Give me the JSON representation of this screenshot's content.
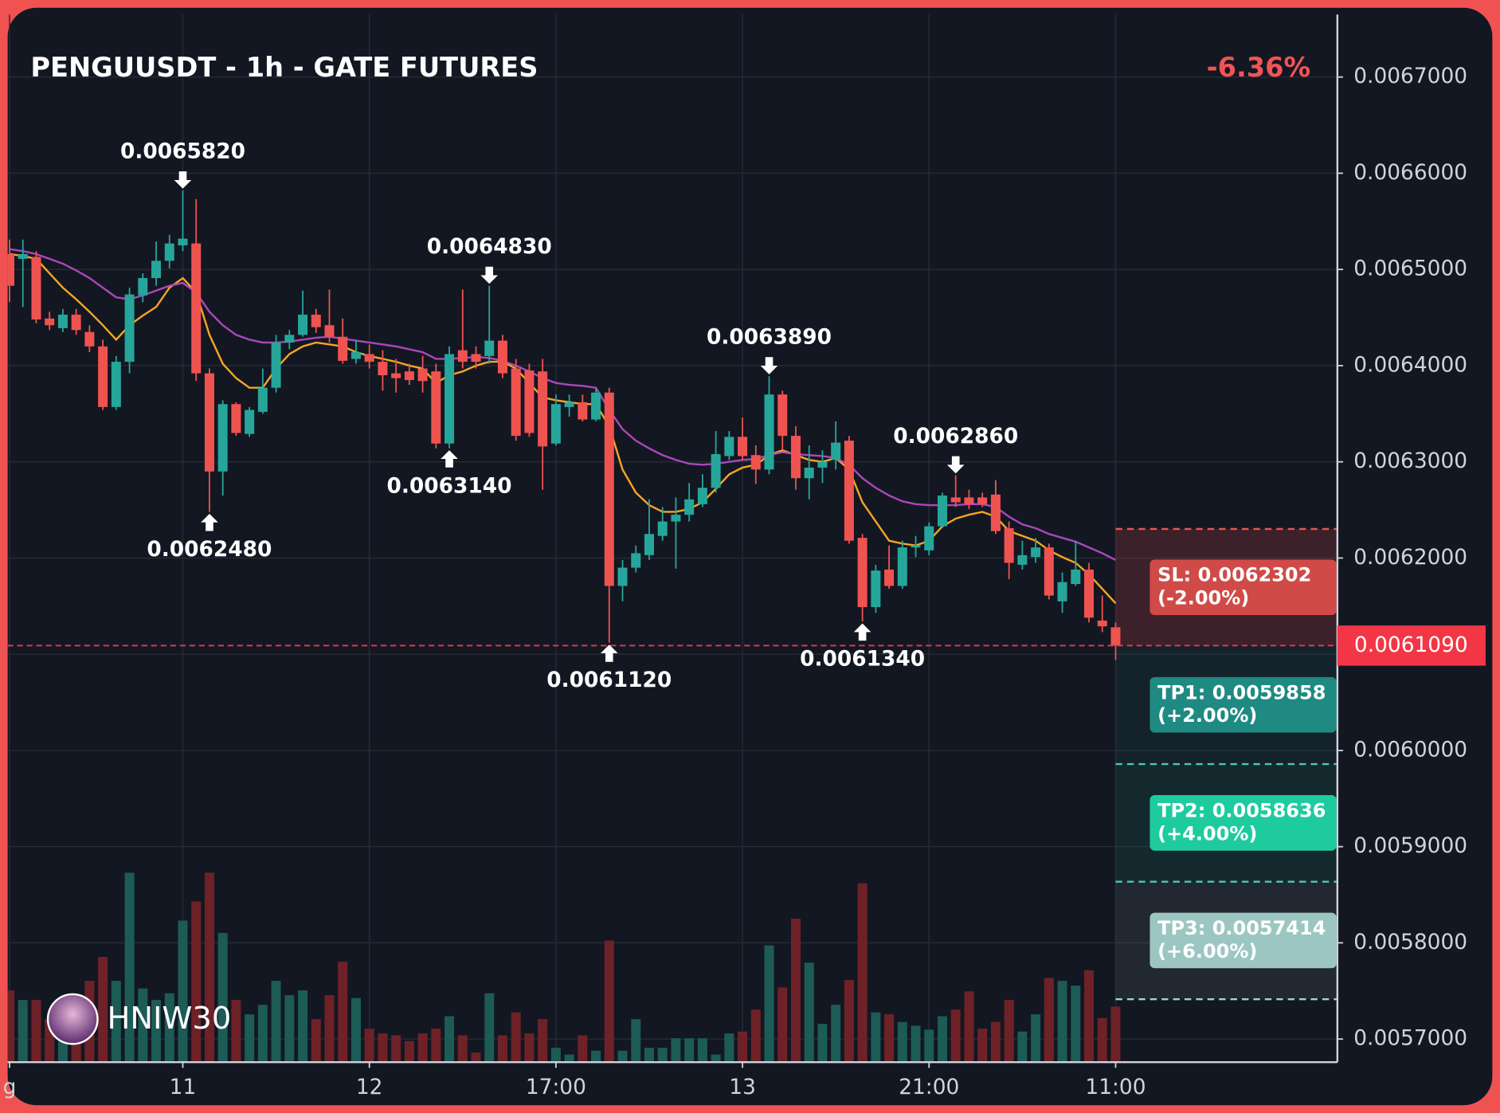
{
  "chart_data": {
    "type": "candlestick",
    "title": "PENGUUSDT - 1h - GATE FUTURES",
    "change": "-6.36%",
    "watermark": "HNIW30",
    "up_color": "#26a69a",
    "down_color": "#ef5350",
    "categories": [
      "g",
      null,
      null,
      null,
      null,
      null,
      null,
      null,
      null,
      null,
      null,
      null,
      null,
      "11",
      null,
      null,
      null,
      null,
      null,
      null,
      null,
      null,
      null,
      null,
      null,
      null,
      null,
      "12",
      null,
      null,
      null,
      null,
      null,
      null,
      null,
      null,
      null,
      null,
      null,
      null,
      null,
      "17:00",
      null,
      null,
      null,
      null,
      null,
      null,
      null,
      null,
      null,
      null,
      null,
      null,
      null,
      "13",
      null,
      null,
      null,
      null,
      null,
      null,
      null,
      null,
      null,
      null,
      null,
      null,
      null,
      "21:00",
      null,
      null,
      null,
      null,
      null,
      null,
      null,
      null,
      null,
      null,
      null,
      null,
      null,
      "11:00"
    ],
    "open": [
      0.006516,
      0.006511,
      0.006513,
      0.006449,
      0.006439,
      0.006453,
      0.006435,
      0.00642,
      0.006357,
      0.006404,
      0.006473,
      0.006491,
      0.006509,
      0.006525,
      0.006527,
      0.006392,
      0.00629,
      0.00636,
      0.006329,
      0.006352,
      0.006377,
      0.006424,
      0.006432,
      0.006453,
      0.006442,
      0.00643,
      0.006407,
      0.006412,
      0.006404,
      0.006392,
      0.006394,
      0.006397,
      0.006394,
      0.006319,
      0.006416,
      0.006412,
      0.00641,
      0.006426,
      0.006397,
      0.006395,
      0.006394,
      0.006319,
      0.006357,
      0.006362,
      0.006344,
      0.006372,
      0.006171,
      0.00619,
      0.006203,
      0.006223,
      0.006238,
      0.006245,
      0.006256,
      0.006273,
      0.006306,
      0.006326,
      0.006307,
      0.006292,
      0.00637,
      0.006327,
      0.006283,
      0.006294,
      0.006302,
      0.006322,
      0.006221,
      0.006149,
      0.006188,
      0.006171,
      0.006211,
      0.006208,
      0.006233,
      0.006263,
      0.006263,
      0.006263,
      0.006266,
      0.006231,
      0.006193,
      0.006201,
      0.006211,
      0.006155,
      0.006173,
      0.006188,
      0.006135,
      0.006128
    ],
    "close": [
      0.006483,
      0.006516,
      0.006448,
      0.006442,
      0.006453,
      0.006437,
      0.00642,
      0.006357,
      0.006404,
      0.006474,
      0.006491,
      0.006509,
      0.006527,
      0.006532,
      0.006392,
      0.00629,
      0.00636,
      0.00633,
      0.006354,
      0.006377,
      0.006424,
      0.006432,
      0.006453,
      0.00644,
      0.00643,
      0.006405,
      0.006414,
      0.006404,
      0.00639,
      0.006387,
      0.006385,
      0.006384,
      0.006319,
      0.006412,
      0.006404,
      0.006404,
      0.006426,
      0.006392,
      0.006327,
      0.00633,
      0.006316,
      0.00636,
      0.006362,
      0.006344,
      0.006372,
      0.006171,
      0.00619,
      0.006205,
      0.006225,
      0.006238,
      0.006245,
      0.006261,
      0.006273,
      0.006308,
      0.006326,
      0.006306,
      0.006292,
      0.00637,
      0.006327,
      0.006283,
      0.006294,
      0.0063,
      0.00632,
      0.006218,
      0.006149,
      0.006187,
      0.006171,
      0.006211,
      0.006213,
      0.006233,
      0.006265,
      0.006258,
      0.006256,
      0.006256,
      0.006228,
      0.006195,
      0.006203,
      0.006211,
      0.006161,
      0.006175,
      0.006188,
      0.006138,
      0.006129,
      0.006109
    ],
    "high": [
      0.006531,
      0.006531,
      0.006519,
      0.006456,
      0.006459,
      0.006459,
      0.006442,
      0.006427,
      0.00641,
      0.006481,
      0.006496,
      0.006529,
      0.006536,
      0.006582,
      0.006573,
      0.006397,
      0.006364,
      0.006362,
      0.006357,
      0.006397,
      0.006432,
      0.006437,
      0.006478,
      0.006459,
      0.006479,
      0.006449,
      0.006427,
      0.006422,
      0.006416,
      0.006407,
      0.006402,
      0.00641,
      0.006402,
      0.00642,
      0.006479,
      0.00642,
      0.006483,
      0.006432,
      0.006407,
      0.006402,
      0.006407,
      0.00637,
      0.00637,
      0.00637,
      0.006377,
      0.006377,
      0.006198,
      0.006213,
      0.006261,
      0.006253,
      0.006263,
      0.006278,
      0.006287,
      0.006332,
      0.006332,
      0.006346,
      0.006317,
      0.006389,
      0.006374,
      0.006337,
      0.006317,
      0.006312,
      0.006342,
      0.006327,
      0.006225,
      0.006193,
      0.006213,
      0.006218,
      0.006223,
      0.006237,
      0.006268,
      0.006286,
      0.006271,
      0.006268,
      0.006281,
      0.006238,
      0.006218,
      0.006221,
      0.006215,
      0.006185,
      0.006218,
      0.006195,
      0.006161,
      0.006133
    ],
    "low": [
      0.006466,
      0.006461,
      0.006444,
      0.006437,
      0.006435,
      0.006432,
      0.006414,
      0.006354,
      0.006354,
      0.006392,
      0.006466,
      0.006483,
      0.006501,
      0.006519,
      0.006384,
      0.006248,
      0.006265,
      0.006327,
      0.006326,
      0.00635,
      0.006372,
      0.006417,
      0.00643,
      0.006434,
      0.006424,
      0.006402,
      0.006402,
      0.006397,
      0.006374,
      0.006372,
      0.00638,
      0.006372,
      0.006314,
      0.006314,
      0.006397,
      0.006397,
      0.006402,
      0.006387,
      0.006322,
      0.006326,
      0.006271,
      0.006317,
      0.006347,
      0.006342,
      0.006342,
      0.006112,
      0.006155,
      0.006185,
      0.006198,
      0.006218,
      0.006189,
      0.006238,
      0.006253,
      0.006268,
      0.006302,
      0.006302,
      0.006277,
      0.006287,
      0.006312,
      0.006271,
      0.006261,
      0.006278,
      0.006292,
      0.006215,
      0.006134,
      0.006143,
      0.006168,
      0.006168,
      0.006201,
      0.006203,
      0.006231,
      0.006253,
      0.006251,
      0.006253,
      0.006225,
      0.006178,
      0.006188,
      0.006195,
      0.006157,
      0.006143,
      0.006171,
      0.006133,
      0.006123,
      0.006094
    ],
    "volume": [
      75,
      65,
      65,
      45,
      60,
      50,
      85,
      110,
      85,
      198,
      77,
      65,
      72,
      148,
      168,
      198,
      135,
      65,
      50,
      60,
      85,
      70,
      75,
      45,
      70,
      105,
      67,
      35,
      30,
      28,
      22,
      30,
      35,
      48,
      28,
      10,
      72,
      28,
      52,
      30,
      45,
      15,
      8,
      28,
      12,
      127,
      12,
      45,
      15,
      15,
      25,
      25,
      25,
      8,
      30,
      32,
      55,
      122,
      78,
      150,
      104,
      40,
      60,
      86,
      187,
      52,
      50,
      42,
      38,
      34,
      48,
      55,
      74,
      35,
      42,
      65,
      32,
      50,
      88,
      85,
      80,
      96,
      46,
      58
    ],
    "vlim": [
      0,
      200
    ],
    "volume_up_color": "#1c5b56",
    "volume_down_color": "#6e2227",
    "moving_averages": [
      {
        "color": "#f5a623",
        "values": [
          0.006516,
          0.006514,
          0.006511,
          0.006496,
          0.006481,
          0.006469,
          0.006456,
          0.006442,
          0.006427,
          0.006442,
          0.006452,
          0.006461,
          0.006481,
          0.006491,
          0.006476,
          0.006432,
          0.006402,
          0.006387,
          0.006377,
          0.006377,
          0.006397,
          0.006412,
          0.00642,
          0.006424,
          0.006422,
          0.00642,
          0.006414,
          0.00641,
          0.006407,
          0.006404,
          0.0064,
          0.006397,
          0.006382,
          0.00639,
          0.006394,
          0.0064,
          0.006404,
          0.006404,
          0.006397,
          0.006382,
          0.006367,
          0.006364,
          0.006362,
          0.00636,
          0.00636,
          0.006337,
          0.006292,
          0.006268,
          0.006255,
          0.006248,
          0.006248,
          0.006251,
          0.006258,
          0.006272,
          0.006287,
          0.006294,
          0.006297,
          0.006307,
          0.006312,
          0.006307,
          0.006302,
          0.0063,
          0.006304,
          0.006292,
          0.006258,
          0.006238,
          0.006218,
          0.006215,
          0.006213,
          0.006218,
          0.006233,
          0.006241,
          0.006245,
          0.006248,
          0.006243,
          0.006228,
          0.006223,
          0.006218,
          0.006208,
          0.006201,
          0.006195,
          0.006183,
          0.006168,
          0.006153
        ]
      },
      {
        "color": "#ab47bc",
        "values": [
          0.006521,
          0.006519,
          0.006516,
          0.006511,
          0.006506,
          0.006499,
          0.006491,
          0.006481,
          0.006471,
          0.006469,
          0.006473,
          0.006478,
          0.006483,
          0.006486,
          0.006476,
          0.006456,
          0.006442,
          0.006432,
          0.006427,
          0.006424,
          0.006424,
          0.006425,
          0.006427,
          0.006429,
          0.00643,
          0.006428,
          0.006426,
          0.006424,
          0.006422,
          0.00642,
          0.006417,
          0.006414,
          0.006407,
          0.006407,
          0.006408,
          0.006409,
          0.006408,
          0.006405,
          0.0064,
          0.006394,
          0.006387,
          0.006382,
          0.00638,
          0.006379,
          0.006377,
          0.006354,
          0.006334,
          0.006322,
          0.006314,
          0.006307,
          0.006302,
          0.006298,
          0.006297,
          0.006298,
          0.0063,
          0.006302,
          0.006303,
          0.006307,
          0.00631,
          0.006308,
          0.006307,
          0.006306,
          0.006304,
          0.006297,
          0.006283,
          0.006273,
          0.006265,
          0.006259,
          0.006256,
          0.006255,
          0.006255,
          0.006255,
          0.006256,
          0.006256,
          0.006253,
          0.006243,
          0.006235,
          0.006231,
          0.006225,
          0.006221,
          0.006217,
          0.006211,
          0.006205,
          0.006198
        ]
      }
    ],
    "annotations": [
      {
        "index": 13,
        "value": 0.006582,
        "label": "0.0065820",
        "side": "above"
      },
      {
        "index": 15,
        "value": 0.006248,
        "label": "0.0062480",
        "side": "below"
      },
      {
        "index": 33,
        "value": 0.006314,
        "label": "0.0063140",
        "side": "below"
      },
      {
        "index": 36,
        "value": 0.006483,
        "label": "0.0064830",
        "side": "above"
      },
      {
        "index": 45,
        "value": 0.006112,
        "label": "0.0061120",
        "side": "below"
      },
      {
        "index": 57,
        "value": 0.006389,
        "label": "0.0063890",
        "side": "above"
      },
      {
        "index": 64,
        "value": 0.006134,
        "label": "0.0061340",
        "side": "below"
      },
      {
        "index": 71,
        "value": 0.006286,
        "label": "0.0062860",
        "side": "above"
      }
    ],
    "last_price": {
      "value": 0.006109,
      "label": "0.0061090",
      "color": "#f23645"
    },
    "levels": [
      {
        "label": "SL: 0.0062302",
        "change": "(-2.00%)",
        "value": 0.0062302,
        "color": "#d04a48",
        "line_color": "#ef5350"
      },
      {
        "label": "TP1: 0.0059858",
        "change": "(+2.00%)",
        "value": 0.0059858,
        "color": "#1f8a82",
        "line_color": "#4dc8b8"
      },
      {
        "label": "TP2: 0.0058636",
        "change": "(+4.00%)",
        "value": 0.0058636,
        "color": "#1ecb9f",
        "line_color": "#4dc8b8"
      },
      {
        "label": "TP3: 0.0057414",
        "change": "(+6.00%)",
        "value": 0.0057414,
        "color": "#9cc6c1",
        "line_color": "#9ad6d0"
      }
    ],
    "ylim": [
      0.005676,
      0.006765
    ],
    "yticks": [
      {
        "value": 0.0057,
        "label": "0.0057000"
      },
      {
        "value": 0.0058,
        "label": "0.0058000"
      },
      {
        "value": 0.0059,
        "label": "0.0059000"
      },
      {
        "value": 0.006,
        "label": "0.0060000"
      },
      {
        "value": 0.0061,
        "label": "0.0061000"
      },
      {
        "value": 0.0062,
        "label": "0.0062000"
      },
      {
        "value": 0.0063,
        "label": "0.0063000"
      },
      {
        "value": 0.0064,
        "label": "0.0064000"
      },
      {
        "value": 0.0065,
        "label": "0.0065000"
      },
      {
        "value": 0.0066,
        "label": "0.0066000"
      },
      {
        "value": 0.0067,
        "label": "0.0067000"
      }
    ],
    "grid": true
  }
}
